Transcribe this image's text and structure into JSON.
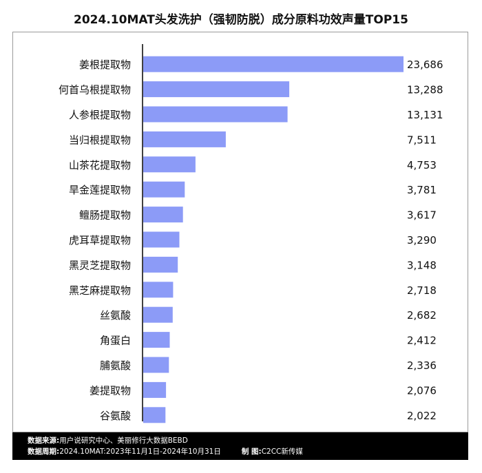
{
  "title": "2024.10MAT头发洗护（强韧防脱）成分原料功效声量TOP15",
  "footer": {
    "source_label": "数据来源:",
    "source_value": "用户说研究中心、美丽修行大数据BEBD",
    "period_label": "数据周期:",
    "period_value": "2024.10MAT:2023年11月1日-2024年10月31日",
    "maker_label": "制  图:",
    "maker_value": "C2CC新传媒"
  },
  "colors": {
    "bar": "#8c9bf7",
    "axis": "#000000",
    "text": "#111111"
  },
  "chart_data": {
    "type": "bar",
    "orientation": "horizontal",
    "title": "2024.10MAT头发洗护（强韧防脱）成分原料功效声量TOP15",
    "categories": [
      "姜根提取物",
      "何首乌根提取物",
      "人参根提取物",
      "当归根提取物",
      "山茶花提取物",
      "旱金莲提取物",
      "鳣肠提取物",
      "虎耳草提取物",
      "黑灵芝提取物",
      "黑芝麻提取物",
      "丝氨酸",
      "角蛋白",
      "脯氨酸",
      "姜提取物",
      "谷氨酸"
    ],
    "values": [
      23686,
      13288,
      13131,
      7511,
      4753,
      3781,
      3617,
      3290,
      3148,
      2718,
      2682,
      2412,
      2336,
      2076,
      2022
    ],
    "value_labels": [
      "23,686",
      "13,288",
      "13,131",
      "7,511",
      "4,753",
      "3,781",
      "3,617",
      "3,290",
      "3,148",
      "2,718",
      "2,682",
      "2,412",
      "2,336",
      "2,076",
      "2,022"
    ],
    "xlim": [
      0,
      23686
    ],
    "grid": false,
    "legend": "none"
  }
}
